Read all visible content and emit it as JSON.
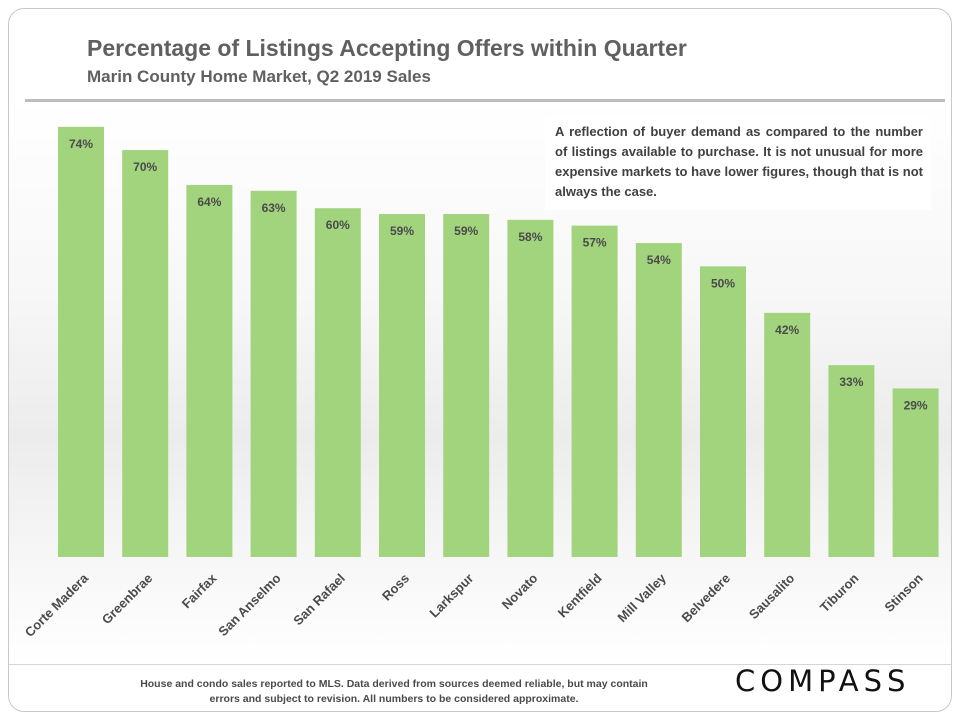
{
  "header": {
    "title": "Percentage of Listings Accepting Offers within Quarter",
    "subtitle": "Marin County Home Market,  Q2 2019 Sales"
  },
  "note": "A reflection of buyer demand as compared to the number of listings available to purchase. It is not unusual for more expensive markets to have lower figures, though that is not always the case.",
  "footer": {
    "note": "House and condo sales reported to MLS. Data derived from sources deemed reliable, but may contain errors and subject to revision. All numbers to be considered approximate.",
    "brand": "COMPASS"
  },
  "colors": {
    "bar": "#a2d47e",
    "label": "#4a4a4a"
  },
  "chart_data": {
    "type": "bar",
    "categories": [
      "Corte Madera",
      "Greenbrae",
      "Fairfax",
      "San Anselmo",
      "San Rafael",
      "Ross",
      "Larkspur",
      "Novato",
      "Kentfield",
      "Mill Valley",
      "Belvedere",
      "Sausalito",
      "Tiburon",
      "Stinson"
    ],
    "values": [
      74,
      70,
      64,
      63,
      60,
      59,
      59,
      58,
      57,
      54,
      50,
      42,
      33,
      29
    ],
    "data_labels": [
      "74%",
      "70%",
      "64%",
      "63%",
      "60%",
      "59%",
      "59%",
      "58%",
      "57%",
      "54%",
      "50%",
      "42%",
      "33%",
      "29%"
    ],
    "title": "Percentage of Listings Accepting Offers within Quarter",
    "ylim": [
      0,
      75
    ],
    "grid": false,
    "legend": "none"
  }
}
